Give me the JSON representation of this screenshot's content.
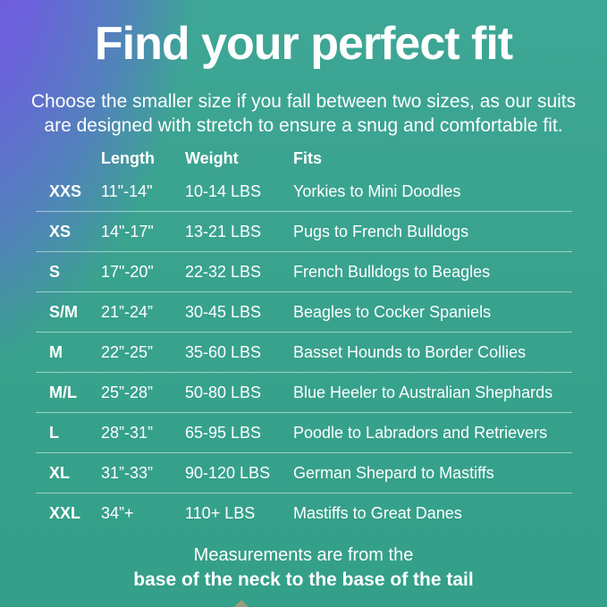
{
  "page": {
    "title": "Find your perfect fit",
    "subtitle_line1": "Choose the smaller size if you fall between two sizes, as our suits",
    "subtitle_line2": "are designed with stretch to ensure a snug and comfortable fit.",
    "footer_line1": "Measurements are from the",
    "footer_line2": "base of the neck to the base of the tail"
  },
  "size_chart": {
    "columns": [
      "Length",
      "Weight",
      "Fits"
    ],
    "rows": [
      {
        "size": "XXS",
        "length": "11\"-14\"",
        "weight": "10-14 LBS",
        "fits": "Yorkies to Mini Doodles"
      },
      {
        "size": "XS",
        "length": "14\"-17\"",
        "weight": "13-21 LBS",
        "fits": "Pugs to French Bulldogs"
      },
      {
        "size": "S",
        "length": "17\"-20\"",
        "weight": "22-32 LBS",
        "fits": "French Bulldogs to Beagles"
      },
      {
        "size": "S/M",
        "length": "21”-24”",
        "weight": "30-45 LBS",
        "fits": "Beagles to Cocker Spaniels"
      },
      {
        "size": "M",
        "length": "22”-25”",
        "weight": "35-60 LBS",
        "fits": "Basset Hounds to Border Collies"
      },
      {
        "size": "M/L",
        "length": "25”-28”",
        "weight": "50-80 LBS",
        "fits": "Blue Heeler to Australian Shephards"
      },
      {
        "size": "L",
        "length": "28”-31”",
        "weight": "65-95 LBS",
        "fits": "Poodle to Labradors and Retrievers"
      },
      {
        "size": "XL",
        "length": "31”-33”",
        "weight": "90-120 LBS",
        "fits": "German Shepard to Mastiffs"
      },
      {
        "size": "XXL",
        "length": "34”+",
        "weight": "110+ LBS",
        "fits": "Mastiffs to Great Danes"
      }
    ]
  },
  "colors": {
    "background_teal": "#38a28c",
    "background_purple": "#7c55e8",
    "text_color": "#ffffff",
    "divider_color": "rgba(255,255,255,0.5)",
    "cropped_graphic_tan": "#c09a74"
  }
}
